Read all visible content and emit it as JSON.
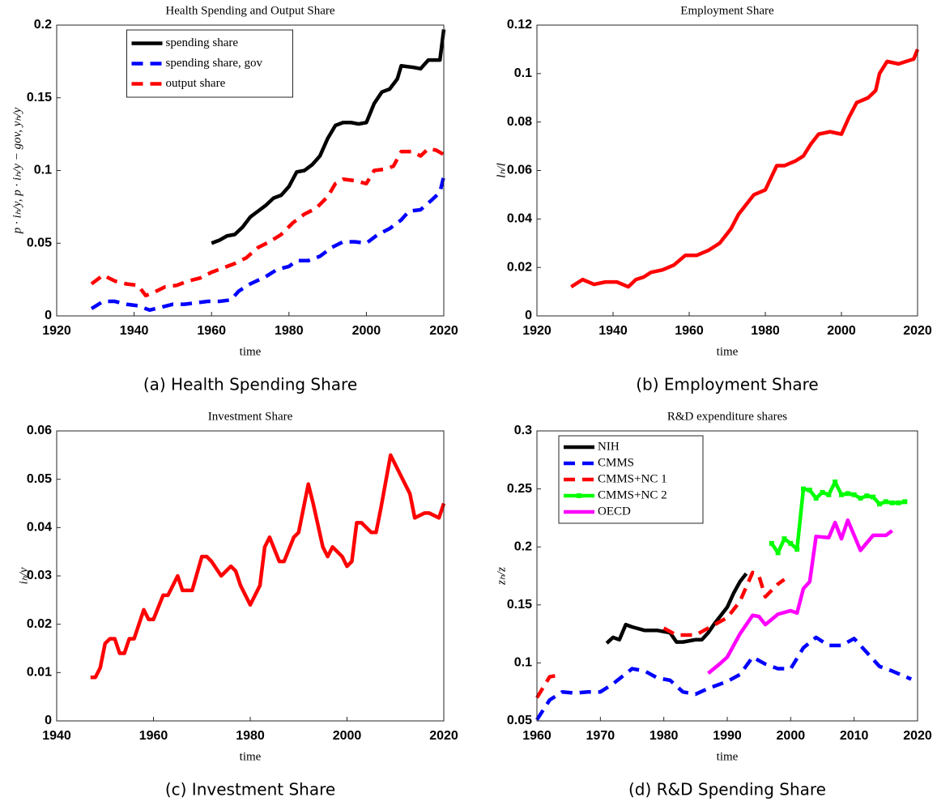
{
  "chart_data": [
    {
      "type": "line",
      "title": "Health Spending and Output Share",
      "caption": "(a) Health Spending Share",
      "xlabel": "time",
      "ylabel": "p · iₕ/y, p · iₕ/y − gov, yₕ/y",
      "xlim": [
        1920,
        2020
      ],
      "xticks": [
        1920,
        1940,
        1960,
        1980,
        2000,
        2020
      ],
      "ylim": [
        0,
        0.2
      ],
      "yticks": [
        0,
        0.05,
        0.1,
        0.15,
        0.2
      ],
      "legend": "upper center",
      "series": [
        {
          "name": "spending share",
          "color": "#000000",
          "style": "solid",
          "x": [
            1960,
            1962,
            1964,
            1966,
            1968,
            1970,
            1972,
            1974,
            1976,
            1978,
            1980,
            1982,
            1984,
            1986,
            1988,
            1990,
            1992,
            1994,
            1996,
            1998,
            2000,
            2002,
            2004,
            2006,
            2008,
            2009,
            2012,
            2014,
            2016,
            2018,
            2019,
            2020
          ],
          "values": [
            0.05,
            0.052,
            0.055,
            0.056,
            0.061,
            0.068,
            0.072,
            0.076,
            0.081,
            0.083,
            0.089,
            0.099,
            0.1,
            0.104,
            0.11,
            0.122,
            0.131,
            0.133,
            0.133,
            0.132,
            0.133,
            0.146,
            0.154,
            0.156,
            0.163,
            0.172,
            0.171,
            0.17,
            0.176,
            0.176,
            0.176,
            0.197
          ]
        },
        {
          "name": "spending share, gov",
          "color": "#0000ff",
          "style": "dashed",
          "x": [
            1929,
            1932,
            1935,
            1938,
            1941,
            1944,
            1947,
            1950,
            1953,
            1956,
            1959,
            1962,
            1965,
            1967,
            1970,
            1974,
            1977,
            1980,
            1982,
            1985,
            1988,
            1991,
            1994,
            1997,
            2000,
            2003,
            2006,
            2009,
            2011,
            2014,
            2017,
            2019,
            2020
          ],
          "values": [
            0.005,
            0.01,
            0.01,
            0.008,
            0.007,
            0.004,
            0.006,
            0.008,
            0.008,
            0.009,
            0.01,
            0.01,
            0.011,
            0.017,
            0.022,
            0.027,
            0.032,
            0.034,
            0.038,
            0.038,
            0.041,
            0.047,
            0.051,
            0.051,
            0.05,
            0.056,
            0.06,
            0.066,
            0.072,
            0.073,
            0.08,
            0.085,
            0.096
          ]
        },
        {
          "name": "output share",
          "color": "#ff0000",
          "style": "dashed",
          "x": [
            1929,
            1932,
            1935,
            1938,
            1941,
            1943,
            1945,
            1948,
            1951,
            1954,
            1957,
            1960,
            1963,
            1966,
            1969,
            1972,
            1975,
            1978,
            1981,
            1984,
            1987,
            1990,
            1992,
            1994,
            1997,
            2000,
            2002,
            2005,
            2007,
            2009,
            2012,
            2014,
            2016,
            2018,
            2020
          ],
          "values": [
            0.022,
            0.028,
            0.024,
            0.022,
            0.021,
            0.014,
            0.016,
            0.02,
            0.021,
            0.024,
            0.026,
            0.03,
            0.033,
            0.036,
            0.04,
            0.047,
            0.051,
            0.056,
            0.064,
            0.07,
            0.074,
            0.082,
            0.091,
            0.094,
            0.093,
            0.091,
            0.1,
            0.101,
            0.103,
            0.113,
            0.113,
            0.11,
            0.115,
            0.114,
            0.111
          ]
        }
      ]
    },
    {
      "type": "line",
      "title": "Employment Share",
      "caption": "(b) Employment Share",
      "xlabel": "time",
      "ylabel": "lₕ/l",
      "xlim": [
        1920,
        2020
      ],
      "xticks": [
        1920,
        1940,
        1960,
        1980,
        2000,
        2020
      ],
      "ylim": [
        0,
        0.12
      ],
      "yticks": [
        0,
        0.02,
        0.04,
        0.06,
        0.08,
        0.1,
        0.12
      ],
      "series": [
        {
          "color": "#ff0000",
          "style": "solid",
          "x": [
            1929,
            1932,
            1935,
            1938,
            1941,
            1944,
            1946,
            1948,
            1950,
            1953,
            1956,
            1959,
            1962,
            1965,
            1968,
            1971,
            1973,
            1975,
            1977,
            1980,
            1983,
            1985,
            1988,
            1990,
            1992,
            1994,
            1997,
            2000,
            2002,
            2004,
            2007,
            2009,
            2010,
            2012,
            2015,
            2017,
            2019,
            2020
          ],
          "values": [
            0.012,
            0.015,
            0.013,
            0.014,
            0.014,
            0.012,
            0.015,
            0.016,
            0.018,
            0.019,
            0.021,
            0.025,
            0.025,
            0.027,
            0.03,
            0.036,
            0.042,
            0.046,
            0.05,
            0.052,
            0.062,
            0.062,
            0.064,
            0.066,
            0.071,
            0.075,
            0.076,
            0.075,
            0.082,
            0.088,
            0.09,
            0.093,
            0.1,
            0.105,
            0.104,
            0.105,
            0.106,
            0.11
          ]
        }
      ]
    },
    {
      "type": "line",
      "title": "Investment Share",
      "caption": "(c) Investment Share",
      "xlabel": "time",
      "ylabel": "iₕ/y",
      "xlim": [
        1940,
        2020
      ],
      "xticks": [
        1940,
        1960,
        1980,
        2000,
        2020
      ],
      "ylim": [
        0,
        0.06
      ],
      "yticks": [
        0,
        0.01,
        0.02,
        0.03,
        0.04,
        0.05,
        0.06
      ],
      "series": [
        {
          "color": "#ff0000",
          "style": "solid",
          "x": [
            1947,
            1948,
            1949,
            1950,
            1951,
            1952,
            1953,
            1954,
            1955,
            1956,
            1958,
            1959,
            1960,
            1962,
            1963,
            1965,
            1966,
            1968,
            1970,
            1971,
            1972,
            1974,
            1976,
            1977,
            1978,
            1980,
            1982,
            1983,
            1984,
            1986,
            1987,
            1989,
            1990,
            1992,
            1993,
            1995,
            1996,
            1997,
            1999,
            2000,
            2001,
            2002,
            2003,
            2005,
            2006,
            2007,
            2009,
            2011,
            2013,
            2014,
            2016,
            2017,
            2019,
            2020
          ],
          "values": [
            0.009,
            0.009,
            0.011,
            0.016,
            0.017,
            0.017,
            0.014,
            0.014,
            0.017,
            0.017,
            0.023,
            0.021,
            0.021,
            0.026,
            0.026,
            0.03,
            0.027,
            0.027,
            0.034,
            0.034,
            0.033,
            0.03,
            0.032,
            0.031,
            0.028,
            0.024,
            0.028,
            0.036,
            0.038,
            0.033,
            0.033,
            0.038,
            0.039,
            0.049,
            0.045,
            0.036,
            0.034,
            0.036,
            0.034,
            0.032,
            0.033,
            0.041,
            0.041,
            0.039,
            0.039,
            0.044,
            0.055,
            0.051,
            0.047,
            0.042,
            0.043,
            0.043,
            0.042,
            0.045
          ]
        }
      ]
    },
    {
      "type": "line",
      "title": "R&D expenditure shares",
      "caption": "(d) R&D Spending Share",
      "xlabel": "time",
      "ylabel": "zₕ/z",
      "xlim": [
        1960,
        2020
      ],
      "xticks": [
        1960,
        1970,
        1980,
        1990,
        2000,
        2010,
        2020
      ],
      "ylim": [
        0.05,
        0.3
      ],
      "yticks": [
        0.05,
        0.1,
        0.15,
        0.2,
        0.25,
        0.3
      ],
      "legend": "upper left",
      "series": [
        {
          "name": "NIH",
          "color": "#000000",
          "style": "solid",
          "x": [
            1971,
            1972,
            1973,
            1974,
            1975,
            1977,
            1979,
            1981,
            1982,
            1983,
            1985,
            1986,
            1987,
            1988,
            1990,
            1991,
            1992,
            1993
          ],
          "values": [
            0.117,
            0.122,
            0.12,
            0.133,
            0.131,
            0.128,
            0.128,
            0.126,
            0.118,
            0.118,
            0.12,
            0.12,
            0.126,
            0.134,
            0.148,
            0.16,
            0.17,
            0.177
          ]
        },
        {
          "name": "CMMS",
          "color": "#0000ff",
          "style": "dashed",
          "x": [
            1960,
            1962,
            1964,
            1966,
            1968,
            1970,
            1972,
            1975,
            1977,
            1979,
            1981,
            1983,
            1985,
            1987,
            1990,
            1992,
            1994,
            1996,
            1998,
            2000,
            2002,
            2004,
            2006,
            2008,
            2010,
            2012,
            2014,
            2016,
            2019
          ],
          "values": [
            0.051,
            0.068,
            0.075,
            0.074,
            0.075,
            0.075,
            0.082,
            0.095,
            0.093,
            0.087,
            0.085,
            0.075,
            0.073,
            0.078,
            0.084,
            0.09,
            0.105,
            0.099,
            0.095,
            0.095,
            0.113,
            0.122,
            0.115,
            0.115,
            0.121,
            0.109,
            0.097,
            0.093,
            0.086
          ]
        },
        {
          "name": "CMMS+NC 1",
          "color": "#ff0000",
          "style": "dashed",
          "x": [
            1960,
            1962,
            1963,
            1970,
            1980,
            1982,
            1985,
            1987,
            1990,
            1992,
            1994,
            1995,
            1996,
            1998,
            1999
          ],
          "values": [
            0.07,
            0.088,
            0.089,
            null,
            0.13,
            0.124,
            0.124,
            0.13,
            0.139,
            0.153,
            0.178,
            0.175,
            0.157,
            0.168,
            0.172
          ]
        },
        {
          "name": "CMMS+NC 2",
          "color": "#00ff00",
          "style": "solid",
          "markers": true,
          "x": [
            1997,
            1998,
            1999,
            2000,
            2001,
            2002,
            2003,
            2004,
            2005,
            2006,
            2007,
            2008,
            2009,
            2010,
            2011,
            2012,
            2013,
            2014,
            2015,
            2016,
            2017,
            2018
          ],
          "values": [
            0.203,
            0.195,
            0.207,
            0.203,
            0.198,
            0.25,
            0.249,
            0.242,
            0.247,
            0.245,
            0.256,
            0.245,
            0.246,
            0.245,
            0.242,
            0.244,
            0.243,
            0.237,
            0.239,
            0.238,
            0.238,
            0.239
          ]
        },
        {
          "name": "OECD",
          "color": "#ff00ff",
          "style": "solid",
          "x": [
            1987,
            1989,
            1990,
            1992,
            1994,
            1995,
            1996,
            1998,
            2000,
            2001,
            2002,
            2003,
            2004,
            2006,
            2007,
            2008,
            2009,
            2011,
            2013,
            2015,
            2016
          ],
          "values": [
            0.091,
            0.1,
            0.105,
            0.125,
            0.141,
            0.14,
            0.133,
            0.142,
            0.145,
            0.143,
            0.164,
            0.17,
            0.209,
            0.208,
            0.221,
            0.207,
            0.223,
            0.197,
            0.21,
            0.21,
            0.214
          ]
        }
      ]
    }
  ]
}
